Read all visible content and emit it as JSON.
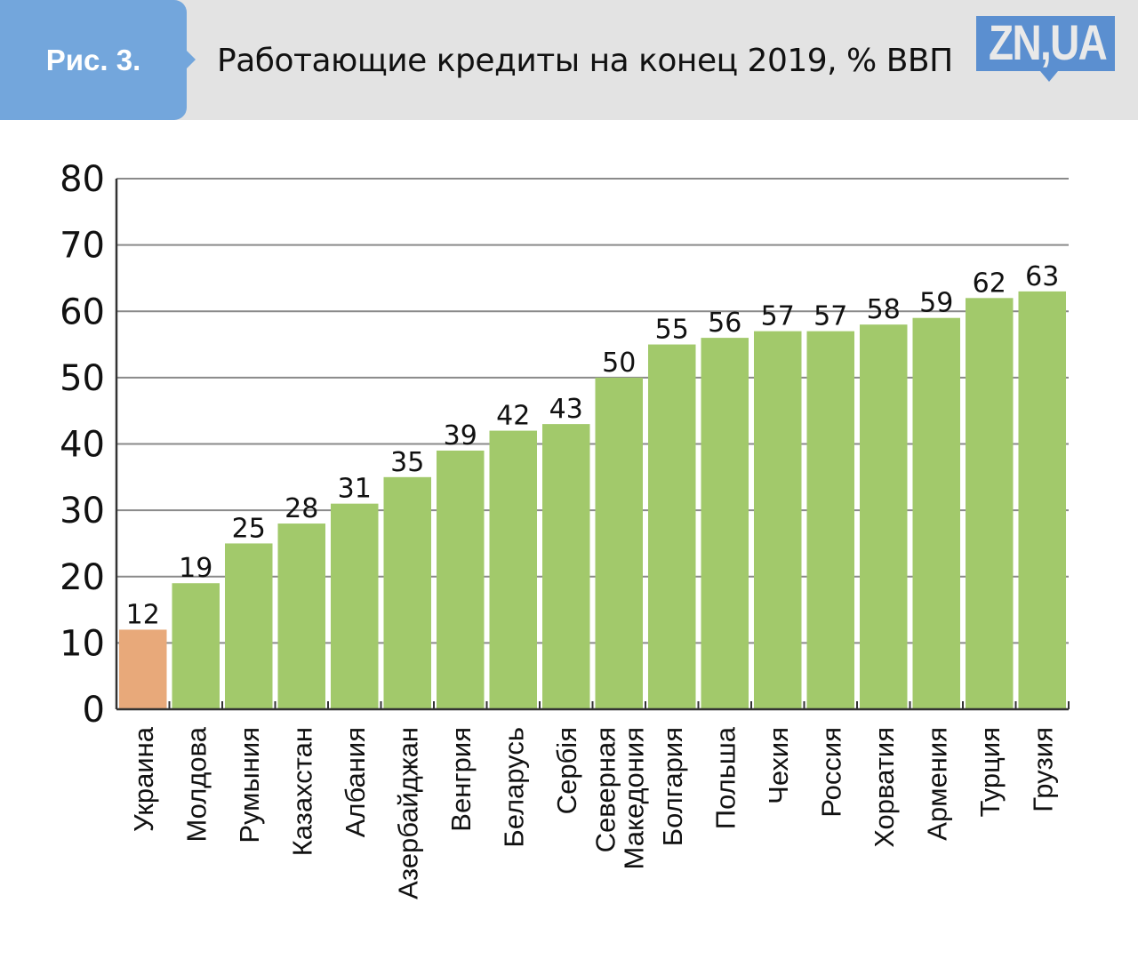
{
  "header": {
    "figure_label": "Рис. 3.",
    "title": "Работающие кредиты на конец 2019, % ВВП",
    "logo_text": "ZN,UA"
  },
  "colors": {
    "header_bg": "#e3e3e3",
    "tab_bg": "#73a6dc",
    "logo_bg": "#5b8fd0",
    "bar_default": "#a2c96b",
    "bar_highlight": "#e8a97a",
    "grid": "#8a8a8a",
    "axis": "#333333"
  },
  "chart_data": {
    "type": "bar",
    "title": "Работающие кредиты на конец 2019, % ВВП",
    "xlabel": "",
    "ylabel": "",
    "ylim": [
      0,
      80
    ],
    "yticks": [
      0,
      10,
      20,
      30,
      40,
      50,
      60,
      70,
      80
    ],
    "grid": true,
    "legend": "none",
    "categories": [
      "Украина",
      "Молдова",
      "Румыния",
      "Казахстан",
      "Албания",
      "Азербайджан",
      "Венгрия",
      "Беларусь",
      "Сербія",
      "Северная Македония",
      "Болгария",
      "Польша",
      "Чехия",
      "Россия",
      "Хорватия",
      "Армения",
      "Турция",
      "Грузия"
    ],
    "label_lines": [
      [
        "Украина"
      ],
      [
        "Молдова"
      ],
      [
        "Румыния"
      ],
      [
        "Казахстан"
      ],
      [
        "Албания"
      ],
      [
        "Азербайджан"
      ],
      [
        "Венгрия"
      ],
      [
        "Беларусь"
      ],
      [
        "Сербія"
      ],
      [
        "Северная",
        "Македония"
      ],
      [
        "Болгария"
      ],
      [
        "Польша"
      ],
      [
        "Чехия"
      ],
      [
        "Россия"
      ],
      [
        "Хорватия"
      ],
      [
        "Армения"
      ],
      [
        "Турция"
      ],
      [
        "Грузия"
      ]
    ],
    "values": [
      12,
      19,
      25,
      28,
      31,
      35,
      39,
      42,
      43,
      50,
      55,
      56,
      57,
      57,
      58,
      59,
      62,
      63
    ],
    "highlight": [
      "Украина"
    ]
  }
}
